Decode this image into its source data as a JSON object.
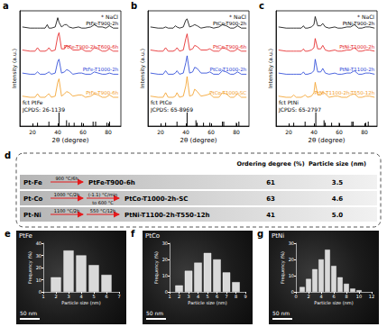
{
  "chart_data": [
    {
      "type": "line",
      "label": "a",
      "x_label": "2θ (degree)",
      "y_label": "Intensity (a.u.)",
      "annotation": "* NaCl",
      "grid": false,
      "tick_labels": "x",
      "xlim": [
        10,
        90
      ],
      "xticks": [
        20,
        40,
        60,
        80
      ],
      "ylim": [
        0,
        100
      ],
      "x": [
        12,
        18,
        22,
        24,
        26,
        30,
        31.7,
        33,
        35,
        38,
        40,
        41,
        43,
        45.4,
        47,
        49,
        52,
        56.5,
        59,
        62,
        66.2,
        69,
        72,
        75.3,
        78,
        81,
        84,
        88
      ],
      "series": [
        {
          "name": "PtFe-T900-2h",
          "color": "#000000",
          "values": [
            86,
            85,
            85,
            85,
            85,
            85,
            88,
            85,
            85,
            86,
            94,
            90,
            86,
            88,
            88,
            86,
            85,
            86,
            85,
            85,
            86,
            88,
            86,
            86,
            85,
            87,
            85,
            85
          ]
        },
        {
          "name": "PtFe-T900-2h-T600-6h",
          "color": "#e41a1c",
          "values": [
            66,
            65,
            65,
            68,
            65,
            65,
            66,
            68,
            65,
            66,
            78,
            81,
            67,
            67,
            70,
            69,
            66,
            66,
            67,
            65,
            65,
            68,
            67,
            65,
            65,
            67,
            65,
            65
          ]
        },
        {
          "name": "PtFe-T1000-2h",
          "color": "#1f3fd6",
          "values": [
            46,
            45,
            45,
            47,
            45,
            45,
            46,
            47,
            45,
            46,
            56,
            58,
            46,
            47,
            49,
            48,
            45,
            46,
            46,
            45,
            45,
            47,
            46,
            45,
            45,
            46,
            45,
            45
          ]
        },
        {
          "name": "PtFe-T900-6h",
          "color": "#f39c1f",
          "values": [
            26,
            25,
            25,
            28,
            25,
            25,
            27,
            28,
            25,
            26,
            38,
            41,
            26,
            28,
            30,
            29,
            26,
            27,
            27,
            25,
            26,
            28,
            27,
            25,
            25,
            27,
            25,
            25
          ]
        }
      ],
      "reference": {
        "type": "bar",
        "name": "fct PtFe",
        "label": "JCPDS: 26-1139",
        "color": "#000000",
        "x": [
          24,
          33,
          41,
          47,
          49,
          53,
          59,
          68,
          70,
          79,
          81
        ],
        "values": [
          3,
          4,
          12,
          5,
          3,
          3,
          3,
          4,
          4,
          3,
          4
        ]
      }
    },
    {
      "type": "line",
      "label": "b",
      "x_label": "2θ (degree)",
      "y_label": "Intensity (a.u.)",
      "annotation": "* NaCl",
      "grid": false,
      "tick_labels": "x",
      "xlim": [
        10,
        90
      ],
      "xticks": [
        20,
        40,
        60,
        80
      ],
      "ylim": [
        0,
        100
      ],
      "x": [
        12,
        18,
        22,
        24,
        26,
        30,
        31.7,
        33,
        35,
        38,
        40,
        41,
        43,
        45.4,
        47,
        49,
        52,
        56.5,
        59,
        62,
        66.2,
        69,
        72,
        75.3,
        78,
        81,
        84,
        88
      ],
      "series": [
        {
          "name": "PtCo-T900-2h",
          "color": "#000000",
          "values": [
            86,
            85,
            85,
            86,
            85,
            85,
            87,
            86,
            85,
            86,
            92,
            93,
            86,
            87,
            88,
            87,
            85,
            86,
            86,
            85,
            86,
            88,
            87,
            85,
            85,
            87,
            85,
            85
          ]
        },
        {
          "name": "PtCo-T900-6h",
          "color": "#e41a1c",
          "values": [
            66,
            65,
            65,
            68,
            65,
            65,
            66,
            68,
            65,
            66,
            76,
            80,
            66,
            67,
            70,
            69,
            66,
            66,
            67,
            65,
            65,
            68,
            67,
            65,
            65,
            67,
            65,
            65
          ]
        },
        {
          "name": "PtCo-T1000-2h",
          "color": "#1f3fd6",
          "values": [
            46,
            45,
            45,
            48,
            45,
            45,
            46,
            48,
            45,
            46,
            55,
            61,
            46,
            47,
            51,
            50,
            46,
            46,
            47,
            45,
            45,
            48,
            47,
            45,
            45,
            47,
            45,
            45
          ]
        },
        {
          "name": "PtCo-T1000-SC",
          "color": "#f39c1f",
          "values": [
            26,
            25,
            25,
            29,
            25,
            25,
            26,
            29,
            25,
            26,
            35,
            43,
            26,
            27,
            32,
            30,
            26,
            27,
            28,
            25,
            25,
            29,
            28,
            25,
            25,
            28,
            25,
            25
          ]
        }
      ],
      "reference": {
        "type": "bar",
        "name": "fct PtCo",
        "label": "JCPDS: 65-8969",
        "color": "#000000",
        "x": [
          24,
          33,
          41,
          48,
          49,
          54,
          59,
          69,
          70,
          80,
          82
        ],
        "values": [
          3,
          4,
          12,
          5,
          3,
          3,
          3,
          4,
          4,
          3,
          4
        ]
      }
    },
    {
      "type": "line",
      "label": "c",
      "x_label": "2θ (degree)",
      "y_label": "Intensity (a.u.)",
      "annotation": "* NaCl",
      "grid": false,
      "tick_labels": "x",
      "xlim": [
        10,
        90
      ],
      "xticks": [
        20,
        40,
        60,
        80
      ],
      "ylim": [
        0,
        100
      ],
      "x": [
        12,
        18,
        22,
        24,
        26,
        30,
        31.7,
        33,
        35,
        38,
        40,
        41,
        43,
        45.4,
        47,
        49,
        52,
        56.5,
        59,
        62,
        66.2,
        69,
        72,
        75.3,
        78,
        81,
        84,
        88
      ],
      "series": [
        {
          "name": "PtNi-T900-2h",
          "color": "#000000",
          "values": [
            86,
            85,
            85,
            85,
            85,
            85,
            87,
            85,
            85,
            86,
            88,
            95,
            87,
            87,
            89,
            86,
            85,
            86,
            85,
            85,
            86,
            86,
            88,
            85,
            85,
            86,
            86,
            85
          ]
        },
        {
          "name": "PtNi-T1000-2h",
          "color": "#e41a1c",
          "values": [
            66,
            65,
            65,
            65,
            65,
            65,
            67,
            65,
            65,
            66,
            68,
            76,
            67,
            67,
            70,
            66,
            65,
            66,
            65,
            65,
            66,
            66,
            68,
            65,
            65,
            66,
            66,
            65
          ]
        },
        {
          "name": "PtNi-T1100-2h",
          "color": "#1f3fd6",
          "values": [
            46,
            45,
            45,
            45,
            45,
            45,
            47,
            45,
            45,
            46,
            48,
            58,
            47,
            47,
            50,
            46,
            45,
            46,
            45,
            45,
            46,
            46,
            48,
            45,
            45,
            46,
            46,
            45
          ]
        },
        {
          "name": "PtNi-T1100-2h-T550-12h",
          "color": "#f39c1f",
          "values": [
            26,
            25,
            25,
            27,
            25,
            25,
            26,
            27,
            25,
            26,
            29,
            38,
            27,
            27,
            30,
            28,
            25,
            26,
            26,
            25,
            25,
            27,
            28,
            25,
            25,
            26,
            26,
            25
          ]
        }
      ],
      "reference": {
        "type": "bar",
        "name": "fct PtNi",
        "label": "JCPDS: 65-2797",
        "color": "#000000",
        "x": [
          24,
          33,
          41.5,
          48,
          49,
          54,
          60,
          70,
          71,
          81,
          83
        ],
        "values": [
          3,
          4,
          12,
          5,
          3,
          3,
          3,
          4,
          4,
          3,
          4
        ]
      }
    },
    {
      "type": "bar",
      "label": "e",
      "title": "PtFe",
      "scale_bar": "50 nm",
      "x_label": "Particle size (nm)",
      "y_label": "Frequency (%)",
      "color": "#d9d9d9",
      "xlim": [
        1,
        7
      ],
      "xticks": [
        1,
        2,
        3,
        4,
        5,
        6,
        7
      ],
      "ylim": [
        0,
        40
      ],
      "yticks": [
        0,
        10,
        20,
        30,
        40
      ],
      "x": [
        2,
        3,
        4,
        5,
        6
      ],
      "values": [
        12,
        34,
        30,
        22,
        14
      ]
    },
    {
      "type": "bar",
      "label": "f",
      "title": "PtCo",
      "scale_bar": "50 nm",
      "x_label": "Particle size (nm)",
      "y_label": "Frequency (%)",
      "color": "#d9d9d9",
      "xlim": [
        1,
        9
      ],
      "xticks": [
        1,
        2,
        3,
        4,
        5,
        6,
        7,
        8,
        9
      ],
      "ylim": [
        0,
        30
      ],
      "yticks": [
        0,
        10,
        20,
        30
      ],
      "x": [
        2,
        3,
        4,
        5,
        6,
        7,
        8
      ],
      "values": [
        4,
        13,
        18,
        24,
        20,
        12,
        6
      ]
    },
    {
      "type": "bar",
      "label": "g",
      "title": "PtNi",
      "scale_bar": "50 nm",
      "x_label": "Particle size (nm)",
      "y_label": "Frequency (%)",
      "color": "#d9d9d9",
      "xlim": [
        0,
        12
      ],
      "xticks": [
        0,
        2,
        4,
        6,
        8,
        10,
        12
      ],
      "ylim": [
        0,
        30
      ],
      "yticks": [
        0,
        10,
        20,
        30
      ],
      "x": [
        1,
        2,
        3,
        4,
        5,
        6,
        7,
        8,
        9,
        10
      ],
      "values": [
        3,
        8,
        14,
        20,
        26,
        16,
        9,
        5,
        2,
        1
      ]
    }
  ],
  "table": {
    "label": "d",
    "columns": [
      "Ordering degree (%)",
      "Particle size (nm)"
    ],
    "rows": [
      {
        "system": "Pt-Fe",
        "conditions": [
          "900 °C/6h"
        ],
        "sample": "PtFe-T900-6h",
        "ordering": "61",
        "size": "3.5"
      },
      {
        "system": "Pt-Co",
        "conditions": [
          "1000 °C/2h",
          "(-1.1) °C/min",
          "to 600 °C"
        ],
        "sample": "PtCo-T1000-2h-SC",
        "ordering": "63",
        "size": "4.6"
      },
      {
        "system": "Pt-Ni",
        "conditions": [
          "1100 °C/2h",
          "550 °C/12h"
        ],
        "sample": "PtNi-T1100-2h-T550-12h",
        "ordering": "41",
        "size": "5.0"
      }
    ]
  }
}
